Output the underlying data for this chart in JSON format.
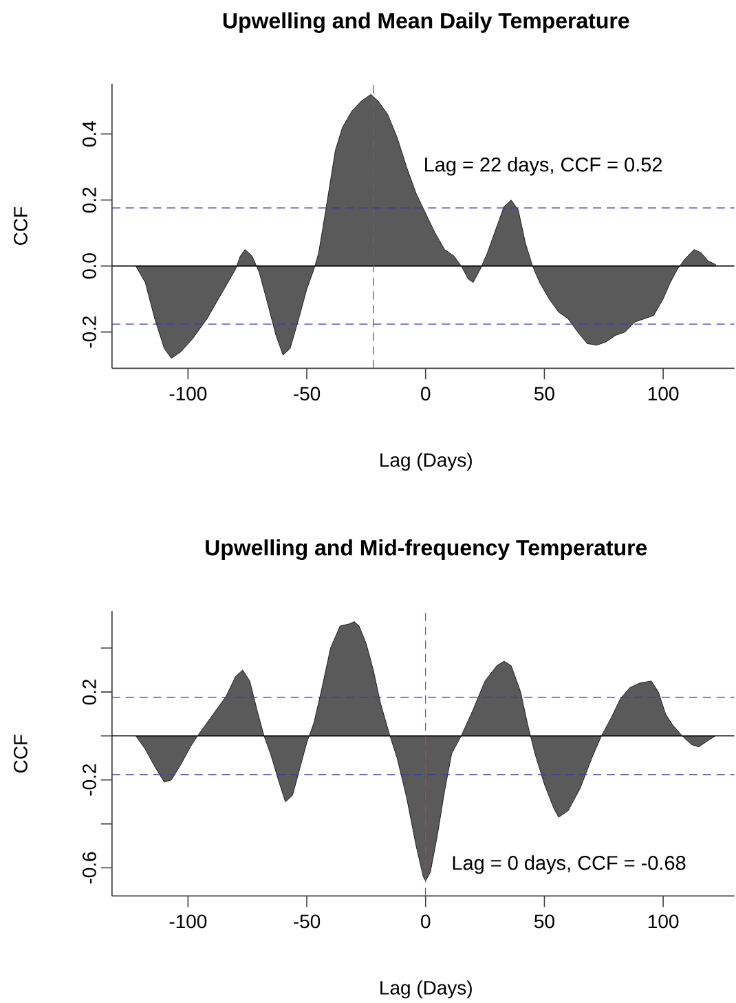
{
  "chart_data": [
    {
      "type": "area",
      "title": "Upwelling and Mean Daily Temperature",
      "xlabel": "Lag (Days)",
      "ylabel": "CCF",
      "color": "#5a5a5a",
      "x": [
        -122,
        -118,
        -114,
        -110,
        -107,
        -103,
        -98,
        -92,
        -88,
        -84,
        -80,
        -78,
        -76,
        -73,
        -70,
        -67,
        -63,
        -60,
        -57,
        -53,
        -50,
        -47,
        -45,
        -42,
        -38,
        -35,
        -31,
        -27,
        -23,
        -20,
        -16,
        -12,
        -8,
        -4,
        0,
        4,
        8,
        12,
        15,
        18,
        20,
        23,
        26,
        30,
        33,
        36,
        39,
        42,
        45,
        48,
        52,
        56,
        60,
        64,
        68,
        72,
        76,
        80,
        84,
        88,
        92,
        96,
        100,
        103,
        106,
        109,
        113,
        116,
        119,
        122
      ],
      "values": [
        0,
        -0.05,
        -0.16,
        -0.25,
        -0.28,
        -0.26,
        -0.22,
        -0.16,
        -0.11,
        -0.06,
        -0.01,
        0.03,
        0.05,
        0.03,
        -0.02,
        -0.1,
        -0.21,
        -0.27,
        -0.25,
        -0.15,
        -0.07,
        -0.01,
        0.04,
        0.17,
        0.35,
        0.42,
        0.47,
        0.5,
        0.52,
        0.5,
        0.46,
        0.39,
        0.3,
        0.22,
        0.16,
        0.1,
        0.05,
        0.03,
        0,
        -0.04,
        -0.05,
        -0.01,
        0.04,
        0.12,
        0.18,
        0.2,
        0.17,
        0.07,
        0,
        -0.05,
        -0.1,
        -0.14,
        -0.16,
        -0.2,
        -0.235,
        -0.24,
        -0.23,
        -0.21,
        -0.2,
        -0.17,
        -0.16,
        -0.15,
        -0.1,
        -0.05,
        -0.01,
        0.02,
        0.05,
        0.04,
        0.015,
        0.005
      ],
      "xlim": [
        -132,
        130
      ],
      "ylim": [
        -0.31,
        0.552
      ],
      "xticks": [
        -100,
        -50,
        0,
        50,
        100
      ],
      "yticks": [
        -0.2,
        {
          "value": 0,
          "label": "0.0"
        },
        0.2,
        0.4
      ],
      "ref_lines": [
        {
          "axis": "y",
          "value": 0.176,
          "color": "#3b3bb0",
          "line_style": "dashed"
        },
        {
          "axis": "y",
          "value": -0.176,
          "color": "#3b3bb0",
          "line_style": "dashed"
        },
        {
          "axis": "x",
          "value": -22,
          "color": "#e03030",
          "line_style": "dashed"
        }
      ],
      "annotations": [
        "Lag = 22 days, CCF = 0.52"
      ]
    },
    {
      "type": "area",
      "title": "Upwelling and Mid-frequency Temperature",
      "xlabel": "Lag (Days)",
      "ylabel": "CCF",
      "color": "#5a5a5a",
      "x": [
        -122,
        -118,
        -114,
        -110,
        -107,
        -103,
        -99,
        -96,
        -92,
        -88,
        -84,
        -80,
        -77,
        -74,
        -71,
        -68,
        -65,
        -62,
        -59,
        -56,
        -53,
        -50,
        -47,
        -44,
        -40,
        -36,
        -32,
        -30,
        -28,
        -25,
        -22,
        -19,
        -15,
        -12,
        -8,
        -4,
        -1,
        0,
        2,
        5,
        8,
        11,
        15,
        20,
        25,
        30,
        33,
        36,
        40,
        43,
        46,
        50,
        54,
        56,
        60,
        65,
        70,
        74,
        78,
        82,
        86,
        90,
        95,
        98,
        101,
        104,
        108,
        112,
        115,
        119,
        122
      ],
      "values": [
        0,
        -0.06,
        -0.14,
        -0.21,
        -0.2,
        -0.13,
        -0.05,
        0,
        0.06,
        0.12,
        0.18,
        0.27,
        0.3,
        0.25,
        0.12,
        0,
        -0.09,
        -0.2,
        -0.3,
        -0.27,
        -0.15,
        -0.03,
        0.06,
        0.2,
        0.4,
        0.5,
        0.51,
        0.52,
        0.5,
        0.42,
        0.3,
        0.15,
        0,
        -0.1,
        -0.28,
        -0.5,
        -0.64,
        -0.66,
        -0.62,
        -0.45,
        -0.25,
        -0.08,
        0,
        0.12,
        0.25,
        0.32,
        0.34,
        0.32,
        0.2,
        0.05,
        -0.08,
        -0.22,
        -0.33,
        -0.37,
        -0.34,
        -0.24,
        -0.1,
        0,
        0.08,
        0.17,
        0.22,
        0.24,
        0.25,
        0.2,
        0.1,
        0.05,
        0,
        -0.04,
        -0.05,
        -0.02,
        0
      ],
      "xlim": [
        -132,
        130
      ],
      "ylim": [
        -0.728,
        0.569
      ],
      "xticks": [
        -100,
        -50,
        0,
        50,
        100
      ],
      "yticks": [
        {
          "value": -0.6,
          "label": "-0.6"
        },
        {
          "value": -0.4,
          "label": null
        },
        -0.2,
        {
          "value": 0,
          "label": null
        },
        0.2,
        {
          "value": 0.4,
          "label": null
        }
      ],
      "ref_lines": [
        {
          "axis": "y",
          "value": 0.176,
          "color": "#3b3bb0",
          "line_style": "dashed"
        },
        {
          "axis": "y",
          "value": -0.176,
          "color": "#3b3bb0",
          "line_style": "dashed"
        },
        {
          "axis": "x",
          "value": 0,
          "color": "#e03030",
          "line_style": "dashed"
        }
      ],
      "annotations": [
        "Lag = 0 days, CCF = -0.68"
      ]
    }
  ]
}
